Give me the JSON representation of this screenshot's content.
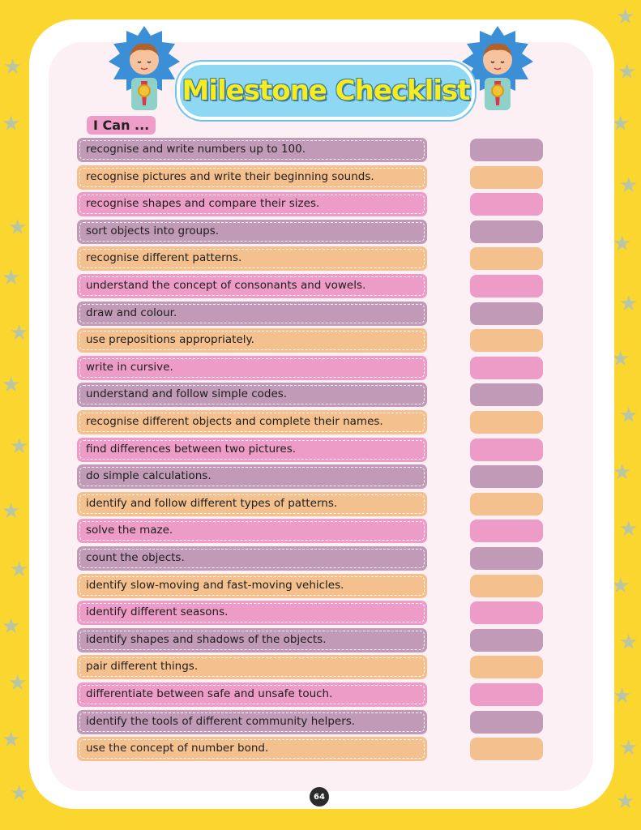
{
  "title": "Milestone Checklist",
  "subtitle": "I Can ...",
  "page_number": "64",
  "colors": {
    "purple": "#c19ab8",
    "orange": "#f4c08d",
    "pink": "#ed9cc7",
    "background": "#fbd62f",
    "banner": "#8fd8f3",
    "title_text": "#f7ec1e"
  },
  "items": [
    {
      "text": "recognise and write numbers up to 100.",
      "color": "purple"
    },
    {
      "text": "recognise pictures and write their beginning sounds.",
      "color": "orange"
    },
    {
      "text": "recognise shapes and compare their sizes.",
      "color": "pink"
    },
    {
      "text": "sort objects into groups.",
      "color": "purple"
    },
    {
      "text": "recognise different patterns.",
      "color": "orange"
    },
    {
      "text": "understand the concept of consonants and vowels.",
      "color": "pink"
    },
    {
      "text": "draw and colour.",
      "color": "purple"
    },
    {
      "text": "use prepositions appropriately.",
      "color": "orange"
    },
    {
      "text": "write in cursive.",
      "color": "pink"
    },
    {
      "text": "understand and follow simple codes.",
      "color": "purple"
    },
    {
      "text": "recognise different objects and complete their names.",
      "color": "orange"
    },
    {
      "text": "find differences between two pictures.",
      "color": "pink"
    },
    {
      "text": "do simple calculations.",
      "color": "purple"
    },
    {
      "text": "identify and follow different types of patterns.",
      "color": "orange"
    },
    {
      "text": "solve the maze.",
      "color": "pink"
    },
    {
      "text": "count the objects.",
      "color": "purple"
    },
    {
      "text": "identify slow-moving and fast-moving vehicles.",
      "color": "orange"
    },
    {
      "text": "identify different seasons.",
      "color": "pink"
    },
    {
      "text": "identify shapes and shadows of the objects.",
      "color": "purple"
    },
    {
      "text": "pair different things.",
      "color": "orange"
    },
    {
      "text": "differentiate between safe and unsafe touch.",
      "color": "pink"
    },
    {
      "text": "identify the tools of different community helpers.",
      "color": "purple"
    },
    {
      "text": "use the concept of number bond.",
      "color": "orange"
    }
  ]
}
